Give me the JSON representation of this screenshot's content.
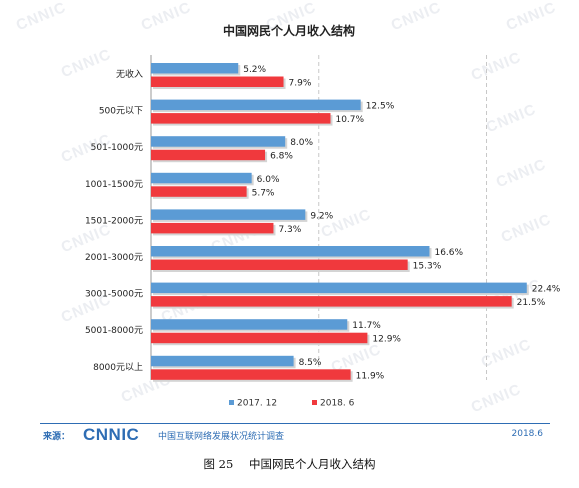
{
  "chart_data": {
    "type": "bar",
    "orientation": "horizontal",
    "title": "中国网民个人月收入结构",
    "categories": [
      "无收入",
      "500元以下",
      "501-1000元",
      "1001-1500元",
      "1501-2000元",
      "2001-3000元",
      "3001-5000元",
      "5001-8000元",
      "8000元以上"
    ],
    "series": [
      {
        "name": "2017. 12",
        "color": "#5b9bd5",
        "values": [
          5.2,
          12.5,
          8.0,
          6.0,
          9.2,
          16.6,
          22.4,
          11.7,
          8.5
        ],
        "labels": [
          "5.2%",
          "12.5%",
          "8.0%",
          "6.0%",
          "9.2%",
          "16.6%",
          "22.4%",
          "11.7%",
          "8.5%"
        ]
      },
      {
        "name": "2018. 6",
        "color": "#f0393d",
        "values": [
          7.9,
          10.7,
          6.8,
          5.7,
          7.3,
          15.3,
          21.5,
          12.9,
          11.9
        ],
        "labels": [
          "7.9%",
          "10.7%",
          "6.8%",
          "5.7%",
          "7.3%",
          "15.3%",
          "21.5%",
          "12.9%",
          "11.9%"
        ]
      }
    ],
    "xlim": [
      0,
      24.5
    ],
    "gridlines": [
      10,
      20
    ],
    "grid": "dashed-vertical",
    "legend": "bottom-center"
  },
  "watermark": "CNNIC",
  "source": {
    "label": "来源：",
    "logo": "CNNIC",
    "org": "中国互联网络发展状况统计调查",
    "date": "2018.6"
  },
  "caption": {
    "figure_no": "图 25",
    "text": "中国网民个人月收入结构"
  }
}
